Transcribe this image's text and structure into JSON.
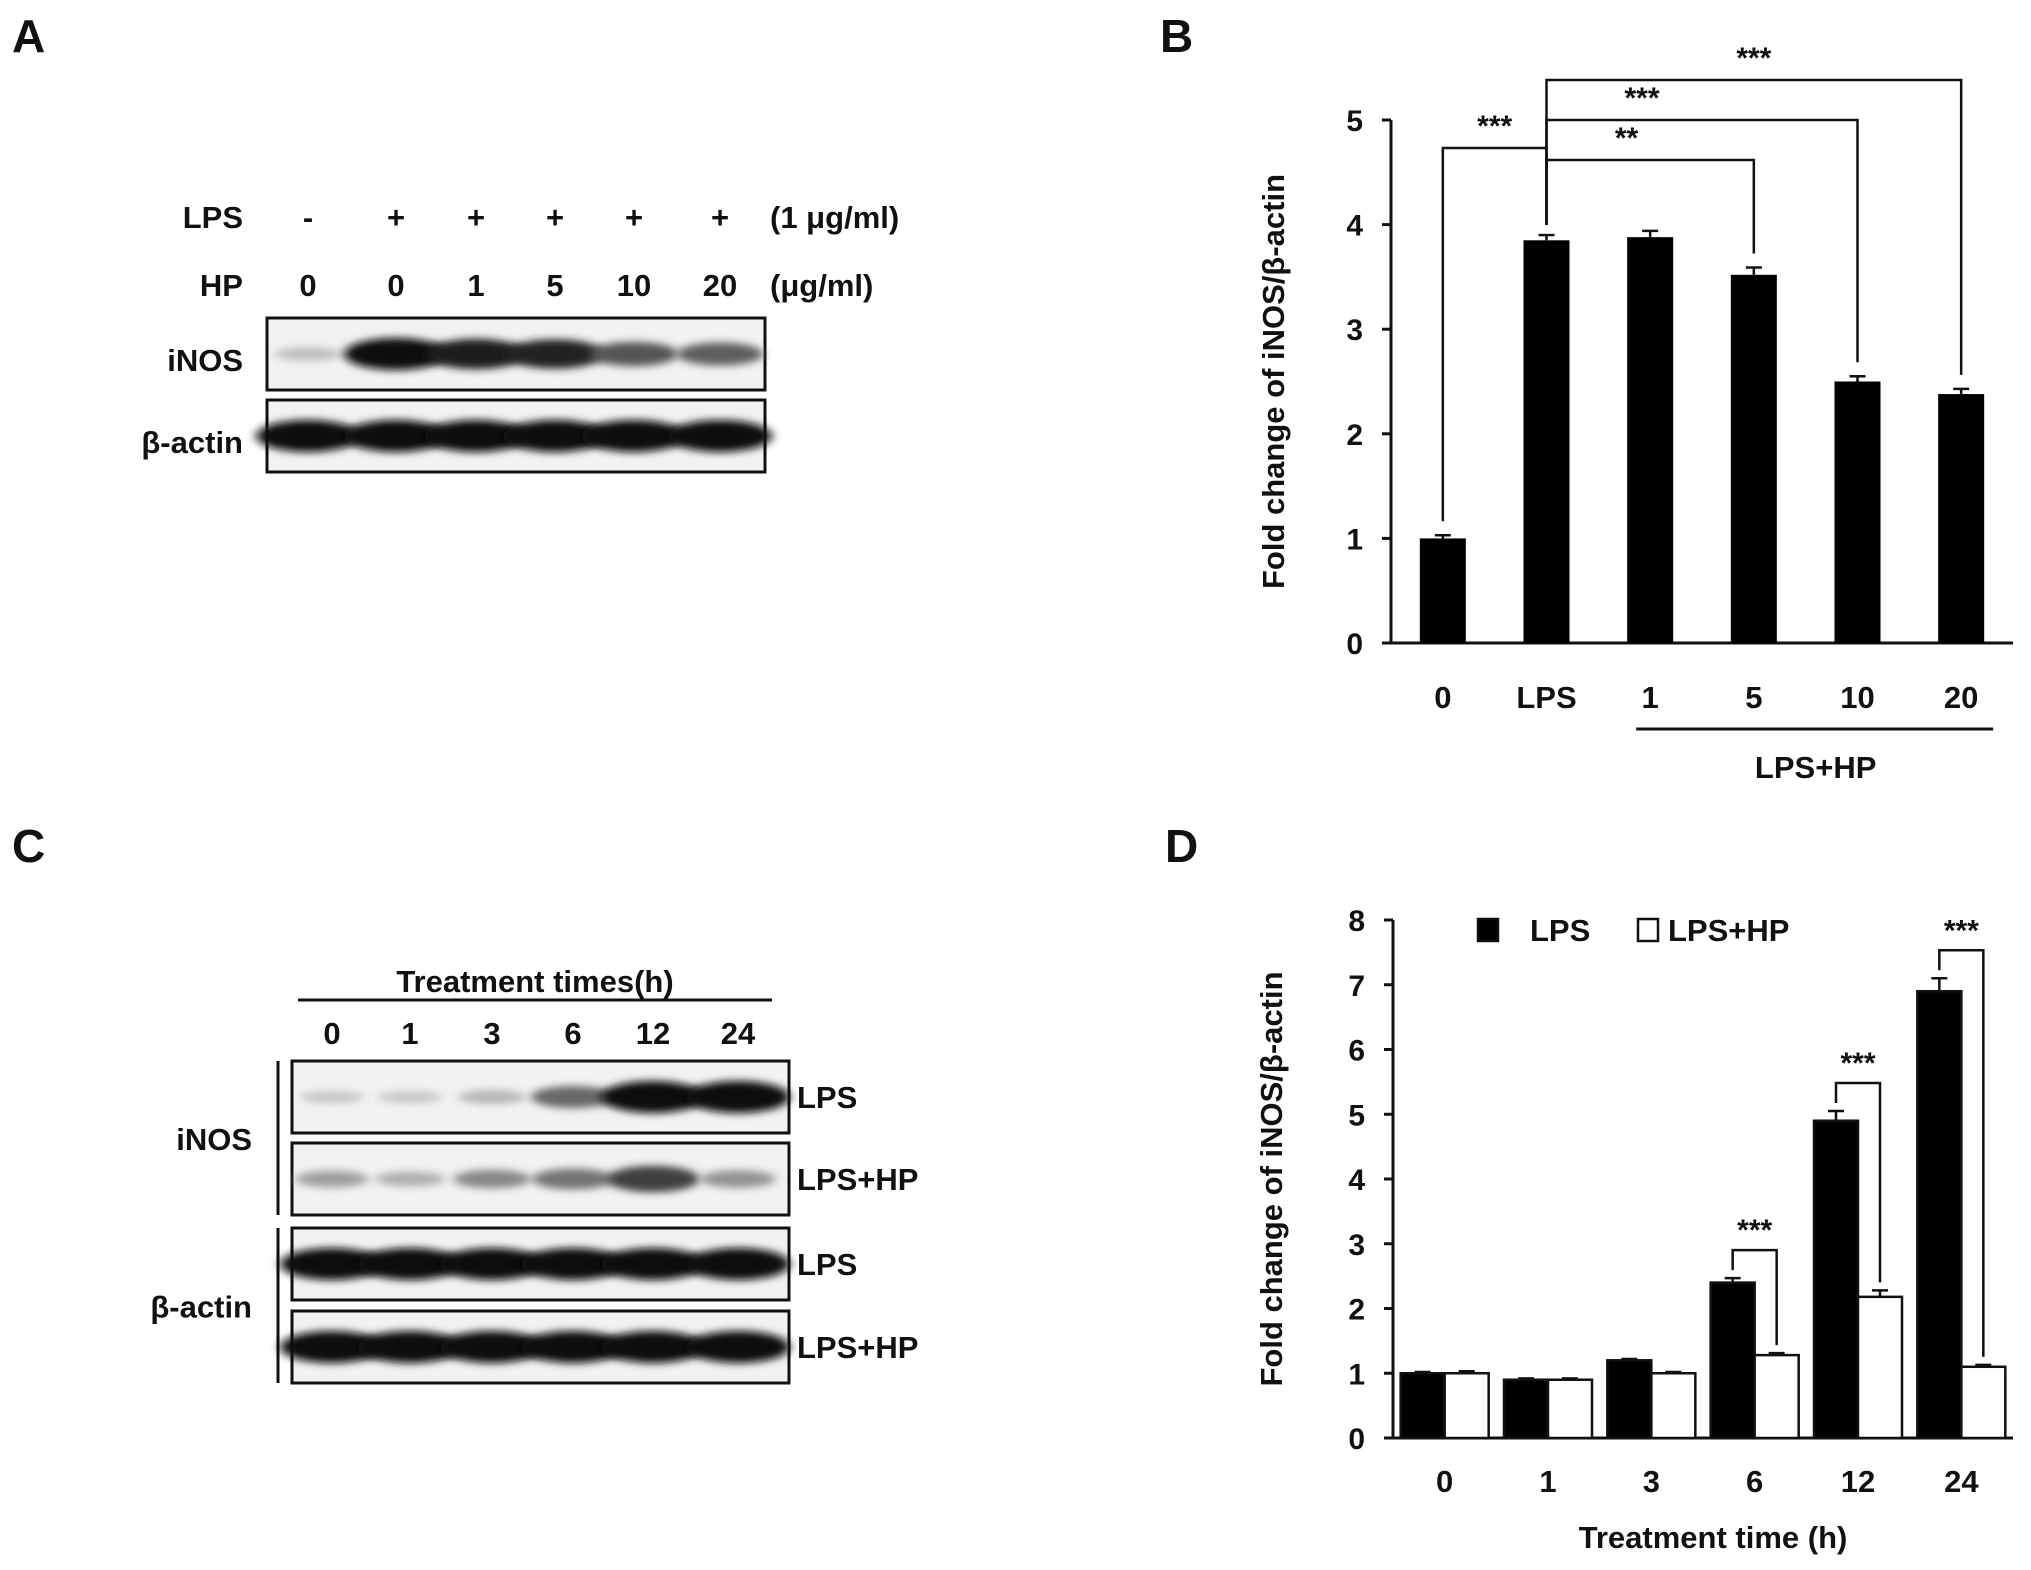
{
  "panels": {
    "A": {
      "letter": "A",
      "row_labels": [
        "LPS",
        "HP"
      ],
      "lps_values": [
        "-",
        "+",
        "+",
        "+",
        "+",
        "+"
      ],
      "hp_values": [
        "0",
        "0",
        "1",
        "5",
        "10",
        "20"
      ],
      "lps_unit": "(1 μg/ml)",
      "hp_unit": "(μg/ml)",
      "blots": [
        {
          "label": "iNOS",
          "intensity": [
            0.15,
            1.0,
            0.92,
            0.88,
            0.65,
            0.6
          ]
        },
        {
          "label": "β-actin",
          "intensity": [
            1.0,
            1.0,
            1.0,
            1.0,
            1.0,
            1.0
          ]
        }
      ]
    },
    "B": {
      "letter": "B"
    },
    "C": {
      "letter": "C",
      "header": "Treatment times(h)",
      "times": [
        "0",
        "1",
        "3",
        "6",
        "12",
        "24"
      ],
      "groups": [
        {
          "label": "iNOS",
          "blots": [
            {
              "label": "LPS",
              "intensity": [
                0.1,
                0.1,
                0.18,
                0.55,
                1.0,
                1.0
              ]
            },
            {
              "label": "LPS+HP",
              "intensity": [
                0.3,
                0.22,
                0.4,
                0.5,
                0.75,
                0.35
              ]
            }
          ]
        },
        {
          "label": "β-actin",
          "blots": [
            {
              "label": "LPS",
              "intensity": [
                1.0,
                1.0,
                1.0,
                1.0,
                1.0,
                1.0
              ]
            },
            {
              "label": "LPS+HP",
              "intensity": [
                1.0,
                1.0,
                1.0,
                1.0,
                1.0,
                1.0
              ]
            }
          ]
        }
      ]
    },
    "D": {
      "letter": "D"
    }
  },
  "chart_data": [
    {
      "panel": "B",
      "type": "bar",
      "categories": [
        "0",
        "LPS",
        "1",
        "5",
        "10",
        "20"
      ],
      "values": [
        1.0,
        3.85,
        3.88,
        3.52,
        2.5,
        2.38
      ],
      "errors": [
        0.03,
        0.05,
        0.06,
        0.07,
        0.05,
        0.05
      ],
      "ylabel": "Fold change of iNOS/β-actin",
      "ylim": [
        0,
        5
      ],
      "yticks": [
        "0",
        "1",
        "2",
        "3",
        "4",
        "5"
      ],
      "group_label": "LPS+HP",
      "bar_color": "#000000",
      "significance": [
        {
          "from": "0",
          "to": "LPS",
          "label": "***"
        },
        {
          "from": "LPS",
          "to": "5",
          "label": "**"
        },
        {
          "from": "LPS",
          "to": "10",
          "label": "***"
        },
        {
          "from": "LPS",
          "to": "20",
          "label": "***"
        }
      ]
    },
    {
      "panel": "D",
      "type": "bar",
      "categories": [
        "0",
        "1",
        "3",
        "6",
        "12",
        "24"
      ],
      "series": [
        {
          "name": "LPS",
          "values": [
            1.0,
            0.9,
            1.2,
            2.4,
            4.9,
            6.9
          ],
          "errors": [
            0.02,
            0.02,
            0.02,
            0.07,
            0.15,
            0.2
          ],
          "color": "#000000"
        },
        {
          "name": "LPS+HP",
          "values": [
            1.0,
            0.9,
            1.0,
            1.28,
            2.18,
            1.1
          ],
          "errors": [
            0.03,
            0.02,
            0.02,
            0.03,
            0.1,
            0.03
          ],
          "color": "#ffffff"
        }
      ],
      "xlabel": "Treatment time (h)",
      "ylabel": "Fold change of iNOS/β-actin",
      "ylim": [
        0,
        8
      ],
      "yticks": [
        "0",
        "1",
        "2",
        "3",
        "4",
        "5",
        "6",
        "7",
        "8"
      ],
      "legend": "top-left",
      "significance": [
        {
          "category": "6",
          "label": "***"
        },
        {
          "category": "12",
          "label": "***"
        },
        {
          "category": "24",
          "label": "***"
        }
      ]
    }
  ]
}
